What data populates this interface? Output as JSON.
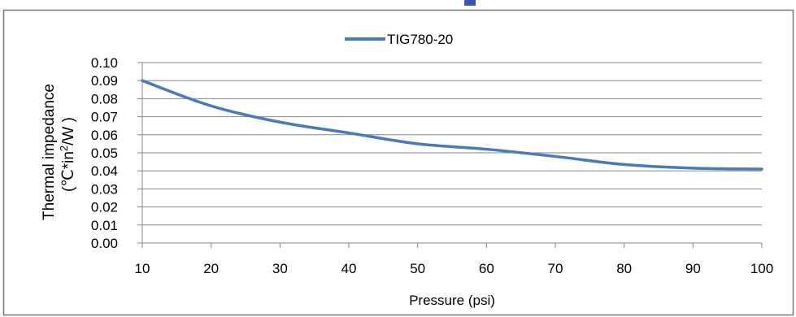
{
  "chart_data": {
    "type": "line",
    "title": "",
    "xlabel": "Pressure (psi)",
    "ylabel": "Thermal impedance",
    "ylabel_unit": {
      "prefix": "(℃*in",
      "superscript": "2",
      "suffix": "/W )"
    },
    "x": [
      10,
      20,
      30,
      40,
      50,
      60,
      70,
      80,
      90,
      100
    ],
    "series": [
      {
        "name": "TIG780-20",
        "color": "#4a7ab8",
        "values": [
          0.09,
          0.076,
          0.067,
          0.061,
          0.055,
          0.052,
          0.048,
          0.0435,
          0.0415,
          0.041
        ]
      }
    ],
    "xlim": [
      10,
      100
    ],
    "ylim": [
      0.0,
      0.1
    ],
    "xticks": [
      "10",
      "20",
      "30",
      "40",
      "50",
      "60",
      "70",
      "80",
      "90",
      "100"
    ],
    "yticks": [
      "0.00",
      "0.01",
      "0.02",
      "0.03",
      "0.04",
      "0.05",
      "0.06",
      "0.07",
      "0.08",
      "0.09",
      "0.10"
    ],
    "grid": true,
    "legend_position": "top-center"
  },
  "colors": {
    "series": "#4a7ab8",
    "grid": "#868686",
    "axis": "#868686",
    "frame": "#767676",
    "title_fragment": "#3a55b4"
  }
}
